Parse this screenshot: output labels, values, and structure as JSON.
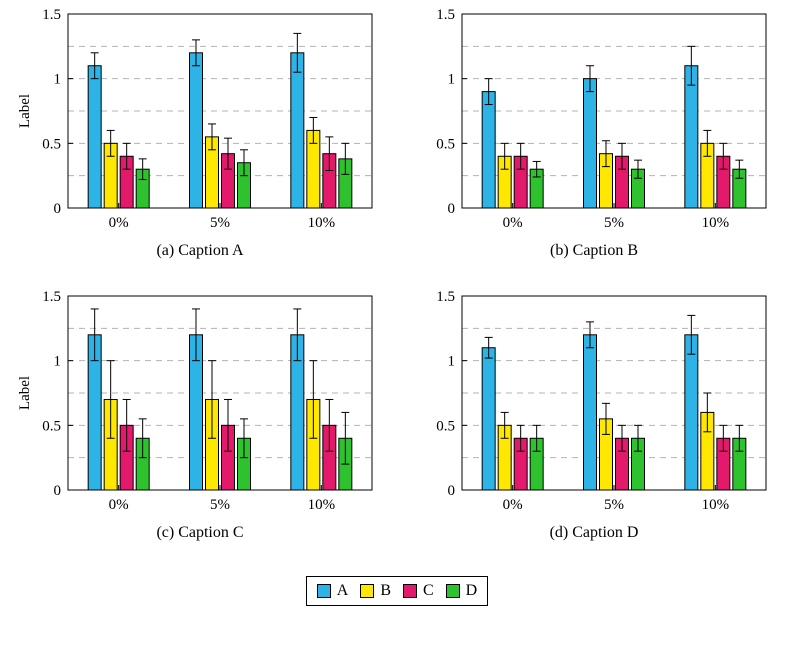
{
  "figure": {
    "background": "#ffffff",
    "axis_color": "#000000",
    "grid_color": "#b3b3b3"
  },
  "legend": {
    "items": [
      {
        "label": "A",
        "color": "#2eb3e6"
      },
      {
        "label": "B",
        "color": "#ffe800"
      },
      {
        "label": "C",
        "color": "#e3196c"
      },
      {
        "label": "D",
        "color": "#2ec22e"
      }
    ]
  },
  "chart_data": [
    {
      "type": "bar",
      "caption": "(a) Caption A",
      "ylabel": "Label",
      "ylim": [
        0,
        1.5
      ],
      "yticks": [
        0,
        0.5,
        1,
        1.5
      ],
      "ytick_labels": [
        "0",
        "0.5",
        "1",
        "1.5"
      ],
      "gridlines": [
        0.25,
        0.5,
        0.75,
        1.0,
        1.25
      ],
      "grid": "dashed",
      "categories": [
        "0%",
        "5%",
        "10%"
      ],
      "series": [
        {
          "name": "A",
          "color": "#2eb3e6",
          "values": [
            1.1,
            1.2,
            1.2
          ],
          "errors": [
            0.1,
            0.1,
            0.15
          ]
        },
        {
          "name": "B",
          "color": "#ffe800",
          "values": [
            0.5,
            0.55,
            0.6
          ],
          "errors": [
            0.1,
            0.1,
            0.1
          ]
        },
        {
          "name": "C",
          "color": "#e3196c",
          "values": [
            0.4,
            0.42,
            0.42
          ],
          "errors": [
            0.1,
            0.12,
            0.13
          ]
        },
        {
          "name": "D",
          "color": "#2ec22e",
          "values": [
            0.3,
            0.35,
            0.38
          ],
          "errors": [
            0.08,
            0.1,
            0.12
          ]
        }
      ]
    },
    {
      "type": "bar",
      "caption": "(b) Caption B",
      "ylabel": "",
      "ylim": [
        0,
        1.5
      ],
      "yticks": [
        0,
        0.5,
        1,
        1.5
      ],
      "ytick_labels": [
        "0",
        "0.5",
        "1",
        "1.5"
      ],
      "gridlines": [
        0.25,
        0.5,
        0.75,
        1.0,
        1.25
      ],
      "grid": "dashed",
      "categories": [
        "0%",
        "5%",
        "10%"
      ],
      "series": [
        {
          "name": "A",
          "color": "#2eb3e6",
          "values": [
            0.9,
            1.0,
            1.1
          ],
          "errors": [
            0.1,
            0.1,
            0.15
          ]
        },
        {
          "name": "B",
          "color": "#ffe800",
          "values": [
            0.4,
            0.42,
            0.5
          ],
          "errors": [
            0.1,
            0.1,
            0.1
          ]
        },
        {
          "name": "C",
          "color": "#e3196c",
          "values": [
            0.4,
            0.4,
            0.4
          ],
          "errors": [
            0.1,
            0.1,
            0.1
          ]
        },
        {
          "name": "D",
          "color": "#2ec22e",
          "values": [
            0.3,
            0.3,
            0.3
          ],
          "errors": [
            0.06,
            0.07,
            0.07
          ]
        }
      ]
    },
    {
      "type": "bar",
      "caption": "(c) Caption C",
      "ylabel": "Label",
      "ylim": [
        0,
        1.5
      ],
      "yticks": [
        0,
        0.5,
        1,
        1.5
      ],
      "ytick_labels": [
        "0",
        "0.5",
        "1",
        "1.5"
      ],
      "gridlines": [
        0.25,
        0.5,
        0.75,
        1.0,
        1.25
      ],
      "grid": "dashed",
      "categories": [
        "0%",
        "5%",
        "10%"
      ],
      "series": [
        {
          "name": "A",
          "color": "#2eb3e6",
          "values": [
            1.2,
            1.2,
            1.2
          ],
          "errors": [
            0.2,
            0.2,
            0.2
          ]
        },
        {
          "name": "B",
          "color": "#ffe800",
          "values": [
            0.7,
            0.7,
            0.7
          ],
          "errors": [
            0.3,
            0.3,
            0.3
          ]
        },
        {
          "name": "C",
          "color": "#e3196c",
          "values": [
            0.5,
            0.5,
            0.5
          ],
          "errors": [
            0.2,
            0.2,
            0.2
          ]
        },
        {
          "name": "D",
          "color": "#2ec22e",
          "values": [
            0.4,
            0.4,
            0.4
          ],
          "errors": [
            0.15,
            0.15,
            0.2
          ]
        }
      ]
    },
    {
      "type": "bar",
      "caption": "(d) Caption D",
      "ylabel": "",
      "ylim": [
        0,
        1.5
      ],
      "yticks": [
        0,
        0.5,
        1,
        1.5
      ],
      "ytick_labels": [
        "0",
        "0.5",
        "1",
        "1.5"
      ],
      "gridlines": [
        0.25,
        0.5,
        0.75,
        1.0,
        1.25
      ],
      "grid": "dashed",
      "categories": [
        "0%",
        "5%",
        "10%"
      ],
      "series": [
        {
          "name": "A",
          "color": "#2eb3e6",
          "values": [
            1.1,
            1.2,
            1.2
          ],
          "errors": [
            0.08,
            0.1,
            0.15
          ]
        },
        {
          "name": "B",
          "color": "#ffe800",
          "values": [
            0.5,
            0.55,
            0.6
          ],
          "errors": [
            0.1,
            0.12,
            0.15
          ]
        },
        {
          "name": "C",
          "color": "#e3196c",
          "values": [
            0.4,
            0.4,
            0.4
          ],
          "errors": [
            0.1,
            0.1,
            0.1
          ]
        },
        {
          "name": "D",
          "color": "#2ec22e",
          "values": [
            0.4,
            0.4,
            0.4
          ],
          "errors": [
            0.1,
            0.1,
            0.1
          ]
        }
      ]
    }
  ]
}
